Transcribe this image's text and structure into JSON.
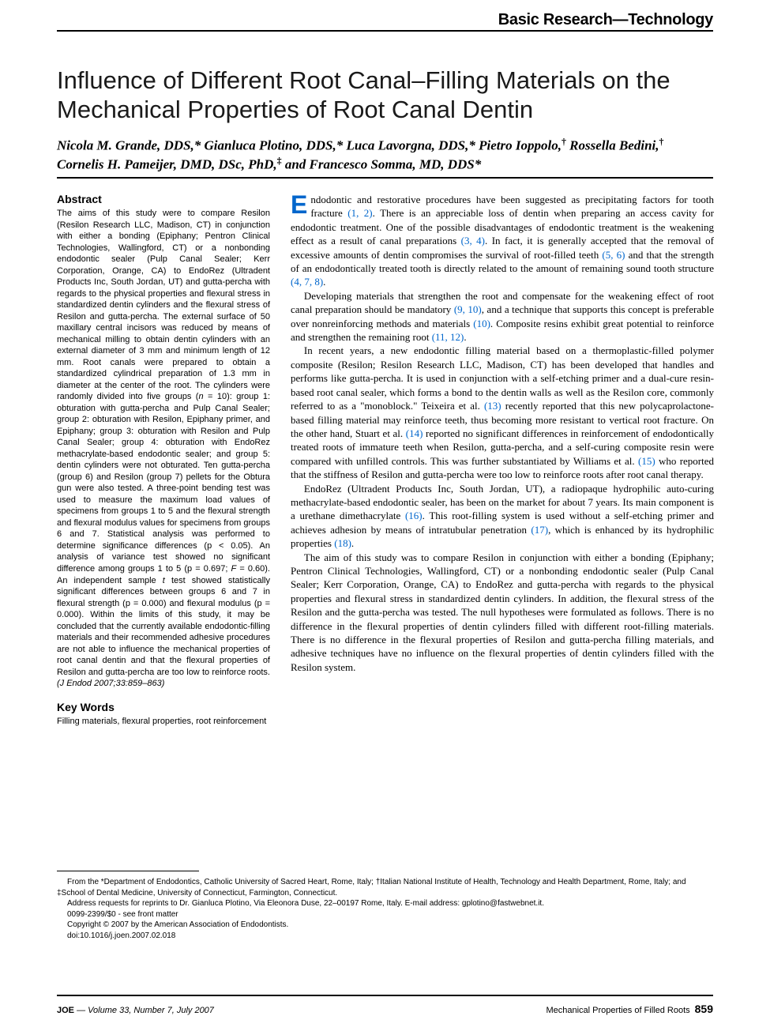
{
  "section_header": "Basic Research—Technology",
  "title": "Influence of Different Root Canal–Filling Materials on the Mechanical Properties of Root Canal Dentin",
  "authors_html": "Nicola M. Grande, DDS,* Gianluca Plotino, DDS,* Luca Lavorgna, DDS,* Pietro Ioppolo,<sup>†</sup> Rossella Bedini,<sup>†</sup> Cornelis H. Pameijer, DMD, DSc, PhD,<sup>‡</sup> and Francesco Somma, MD, DDS*",
  "abstract_head": "Abstract",
  "abstract_body": "The aims of this study were to compare Resilon (Resilon Research LLC, Madison, CT) in conjunction with either a bonding (Epiphany; Pentron Clinical Technologies, Wallingford, CT) or a nonbonding endodontic sealer (Pulp Canal Sealer; Kerr Corporation, Orange, CA) to EndoRez (Ultradent Products Inc, South Jordan, UT) and gutta-percha with regards to the physical properties and flexural stress in standardized dentin cylinders and the flexural stress of Resilon and gutta-percha. The external surface of 50 maxillary central incisors was reduced by means of mechanical milling to obtain dentin cylinders with an external diameter of 3 mm and minimum length of 12 mm. Root canals were prepared to obtain a standardized cylindrical preparation of 1.3 mm in diameter at the center of the root. The cylinders were randomly divided into five groups (<span class=\"ital\">n</span> = 10): group 1: obturation with gutta-percha and Pulp Canal Sealer; group 2: obturation with Resilon, Epiphany primer, and Epiphany; group 3: obturation with Resilon and Pulp Canal Sealer; group 4: obturation with EndoRez methacrylate-based endodontic sealer; and group 5: dentin cylinders were not obturated. Ten gutta-percha (group 6) and Resilon (group 7) pellets for the Obtura gun were also tested. A three-point bending test was used to measure the maximum load values of specimens from groups 1 to 5 and the flexural strength and flexural modulus values for specimens from groups 6 and 7. Statistical analysis was performed to determine significance differences (p < 0.05). An analysis of variance test showed no significant difference among groups 1 to 5 (p = 0.697; <span class=\"ital\">F</span> = 0.60). An independent sample <span class=\"ital\">t</span> test showed statistically significant differences between groups 6 and 7 in flexural strength (p = 0.000) and flexural modulus (p = 0.000). Within the limits of this study, it may be concluded that the currently available endodontic-filling materials and their recommended adhesive procedures are not able to influence the mechanical properties of root canal dentin and that the flexural properties of Resilon and gutta-percha are too low to reinforce roots. <span class=\"ital\">(J Endod 2007;33:859–863)</span>",
  "keywords_head": "Key Words",
  "keywords_body": "Filling materials, flexural properties, root reinforcement",
  "para1": "ndodontic and restorative procedures have been suggested as precipitating factors for tooth fracture <span class=\"cite\">(1, 2)</span>. There is an appreciable loss of dentin when preparing an access cavity for endodontic treatment. One of the possible disadvantages of endodontic treatment is the weakening effect as a result of canal preparations <span class=\"cite\">(3, 4)</span>. In fact, it is generally accepted that the removal of excessive amounts of dentin compromises the survival of root-filled teeth <span class=\"cite\">(5, 6)</span> and that the strength of an endodontically treated tooth is directly related to the amount of remaining sound tooth structure <span class=\"cite\">(4, 7, 8)</span>.",
  "para2": "Developing materials that strengthen the root and compensate for the weakening effect of root canal preparation should be mandatory <span class=\"cite\">(9, 10)</span>, and a technique that supports this concept is preferable over nonreinforcing methods and materials <span class=\"cite\">(10)</span>. Composite resins exhibit great potential to reinforce and strengthen the remaining root <span class=\"cite\">(11, 12)</span>.",
  "para3": "In recent years, a new endodontic filling material based on a thermoplastic-filled polymer composite (Resilon; Resilon Research LLC, Madison, CT) has been developed that handles and performs like gutta-percha. It is used in conjunction with a self-etching primer and a dual-cure resin-based root canal sealer, which forms a bond to the dentin walls as well as the Resilon core, commonly referred to as a \"monoblock.\" Teixeira et al. <span class=\"cite\">(13)</span> recently reported that this new polycaprolactone-based filling material may reinforce teeth, thus becoming more resistant to vertical root fracture. On the other hand, Stuart et al. <span class=\"cite\">(14)</span> reported no significant differences in reinforcement of endodontically treated roots of immature teeth when Resilon, gutta-percha, and a self-curing composite resin were compared with unfilled controls. This was further substantiated by Williams et al. <span class=\"cite\">(15)</span> who reported that the stiffness of Resilon and gutta-percha were too low to reinforce roots after root canal therapy.",
  "para4": "EndoRez (Ultradent Products Inc, South Jordan, UT), a radiopaque hydrophilic auto-curing methacrylate-based endodontic sealer, has been on the market for about 7 years. Its main component is a urethane dimethacrylate <span class=\"cite\">(16)</span>. This root-filling system is used without a self-etching primer and achieves adhesion by means of intratubular penetration <span class=\"cite\">(17)</span>, which is enhanced by its hydrophilic properties <span class=\"cite\">(18)</span>.",
  "para5": "The aim of this study was to compare Resilon in conjunction with either a bonding (Epiphany; Pentron Clinical Technologies, Wallingford, CT) or a nonbonding endodontic sealer (Pulp Canal Sealer; Kerr Corporation, Orange, CA) to EndoRez and gutta-percha with regards to the physical properties and flexural stress in standardized dentin cylinders. In addition, the flexural stress of the Resilon and the gutta-percha was tested. The null hypotheses were formulated as follows. There is no difference in the flexural properties of dentin cylinders filled with different root-filling materials. There is no difference in the flexural properties of Resilon and gutta-percha filling materials, and adhesive techniques have no influence on the flexural properties of dentin cylinders filled with the Resilon system.",
  "affil1": "From the *Department of Endodontics, Catholic University of Sacred Heart, Rome, Italy; †Italian National Institute of Health, Technology and Health Department, Rome, Italy; and ‡School of Dental Medicine, University of Connecticut, Farmington, Connecticut.",
  "affil2": "Address requests for reprints to Dr. Gianluca Plotino, Via Eleonora Duse, 22–00197 Rome, Italy. E-mail address: gplotino@fastwebnet.it.",
  "affil3": "0099-2399/$0 - see front matter",
  "affil4": "Copyright © 2007 by the American Association of Endodontists.",
  "affil5": "doi:10.1016/j.joen.2007.02.018",
  "footer_left_journal": "JOE",
  "footer_left_issue": " — Volume 33, Number 7, July 2007",
  "footer_right_title": "Mechanical Properties of Filled Roots",
  "footer_page": "859"
}
